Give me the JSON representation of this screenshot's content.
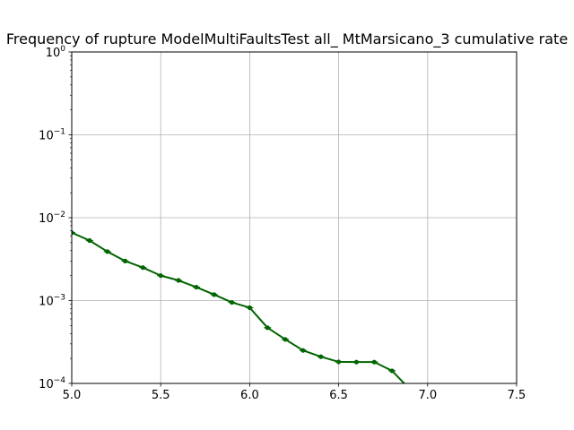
{
  "chart_data": {
    "type": "line",
    "title": "Frequency of rupture ModelMultiFaultsTest all_ MtMarsicano_3 cumulative rate",
    "xlabel": "",
    "ylabel": "",
    "xlim": [
      5.0,
      7.5
    ],
    "ylim": [
      0.0001,
      1
    ],
    "yscale": "log",
    "grid": true,
    "x_ticks": [
      "5.0",
      "5.5",
      "6.0",
      "6.5",
      "7.0",
      "7.5"
    ],
    "y_ticks": [
      {
        "base": "10",
        "exp": "0"
      },
      {
        "base": "10",
        "exp": "−1"
      },
      {
        "base": "10",
        "exp": "−2"
      },
      {
        "base": "10",
        "exp": "−3"
      },
      {
        "base": "10",
        "exp": "−4"
      }
    ],
    "series": [
      {
        "color": "#006400",
        "x": [
          5.0,
          5.1,
          5.2,
          5.3,
          5.4,
          5.5,
          5.6,
          5.7,
          5.8,
          5.9,
          6.0,
          6.1,
          6.2,
          6.3,
          6.4,
          6.5,
          6.6,
          6.7,
          6.8,
          6.9
        ],
        "y": [
          0.0066,
          0.0053,
          0.0039,
          0.003,
          0.0025,
          0.002,
          0.00175,
          0.00145,
          0.00118,
          0.00095,
          0.00082,
          0.00047,
          0.00034,
          0.00025,
          0.00021,
          0.000182,
          0.000181,
          0.000181,
          0.000142,
          8.5e-05
        ]
      }
    ]
  }
}
